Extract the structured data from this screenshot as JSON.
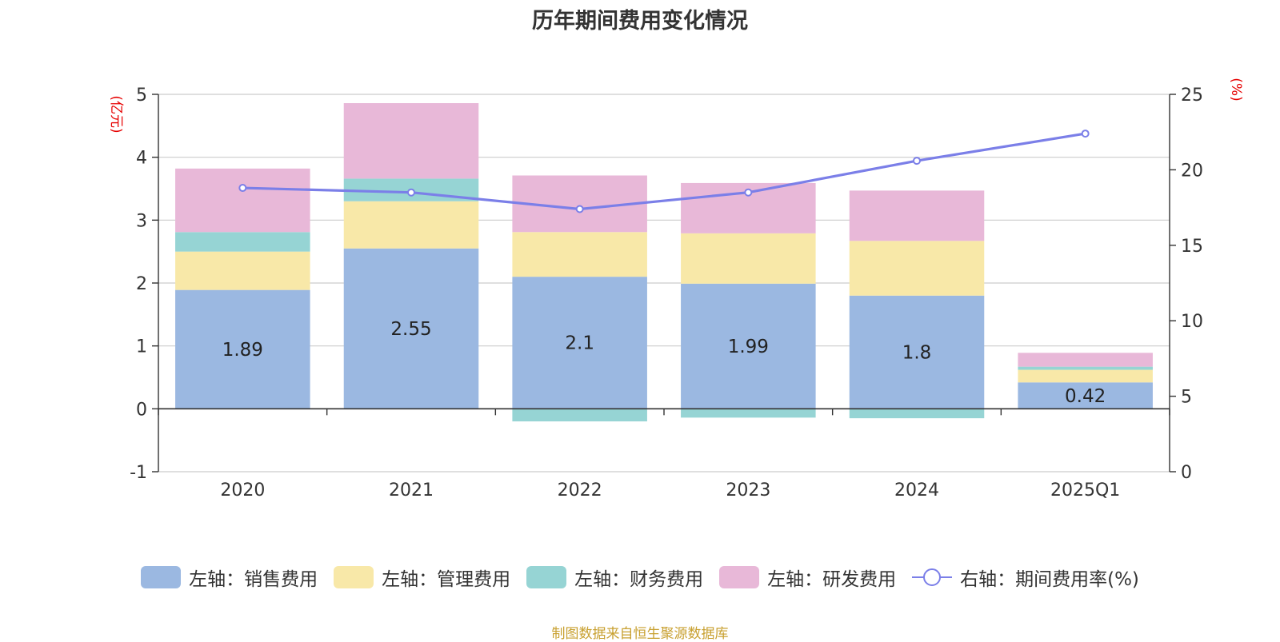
{
  "chart_data": {
    "type": "bar",
    "title": "历年期间费用变化情况",
    "categories": [
      "2020",
      "2021",
      "2022",
      "2023",
      "2024",
      "2025Q1"
    ],
    "left_axis": {
      "unit": "(亿元)",
      "ylim": [
        -1,
        5
      ],
      "ticks": [
        "-1",
        "0",
        "1",
        "2",
        "3",
        "4",
        "5"
      ]
    },
    "right_axis": {
      "unit": "(%)",
      "ylim": [
        0,
        25
      ],
      "ticks": [
        "0",
        "5",
        "10",
        "15",
        "20",
        "25"
      ]
    },
    "stacked": true,
    "series": [
      {
        "name": "左轴：销售费用",
        "axis": "left",
        "color": "#9bb8e1",
        "values": [
          1.89,
          2.55,
          2.1,
          1.99,
          1.8,
          0.42
        ],
        "labels": [
          "1.89",
          "2.55",
          "2.1",
          "1.99",
          "1.8",
          "0.42"
        ]
      },
      {
        "name": "左轴：管理费用",
        "axis": "left",
        "color": "#f8e8a8",
        "values": [
          0.61,
          0.75,
          0.71,
          0.8,
          0.87,
          0.2
        ]
      },
      {
        "name": "左轴：财务费用",
        "axis": "left",
        "color": "#96d4d4",
        "values": [
          0.31,
          0.36,
          -0.2,
          -0.14,
          -0.15,
          0.05
        ]
      },
      {
        "name": "左轴：研发费用",
        "axis": "left",
        "color": "#e8b8d8",
        "values": [
          1.01,
          1.2,
          0.9,
          0.8,
          0.8,
          0.22
        ]
      },
      {
        "name": "右轴：期间费用率(%)",
        "axis": "right",
        "type": "line",
        "color": "#7b7fe8",
        "values": [
          18.8,
          18.5,
          17.4,
          18.5,
          20.6,
          22.4
        ]
      }
    ],
    "grid": true,
    "legend_position": "bottom"
  },
  "source_note": "制图数据来自恒生聚源数据库"
}
